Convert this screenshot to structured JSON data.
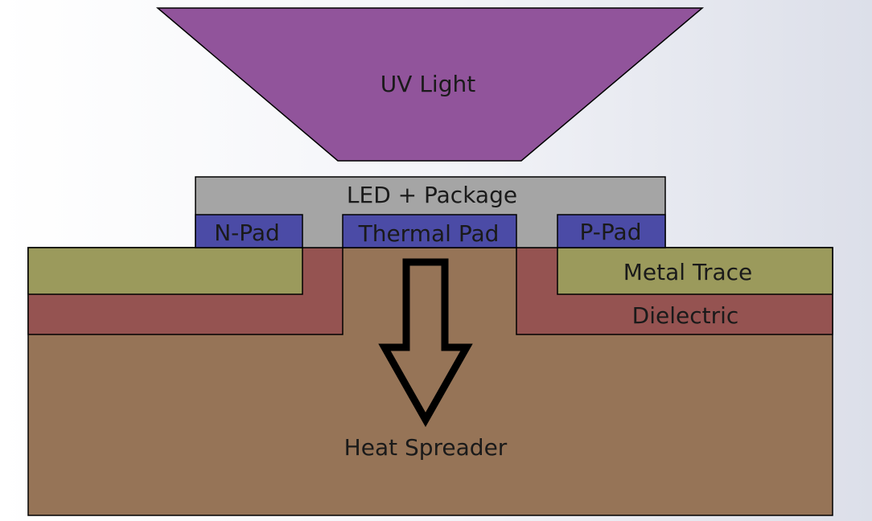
{
  "labels": {
    "uv_light": "UV Light",
    "led_package": "LED + Package",
    "n_pad": "N-Pad",
    "thermal_pad": "Thermal Pad",
    "p_pad": "P-Pad",
    "metal_trace": "Metal Trace",
    "dielectric": "Dielectric",
    "heat_spreader": "Heat Spreader"
  },
  "colors": {
    "uv_light": "#91549b",
    "led_package": "#a5a5a5",
    "pad": "#4b4ba6",
    "metal_trace": "#9b9a5c",
    "dielectric": "#955351",
    "heat_spreader": "#967457",
    "text": "#1a1a1a"
  },
  "icons": {
    "heat_flow": "down-arrow-outline-icon"
  }
}
